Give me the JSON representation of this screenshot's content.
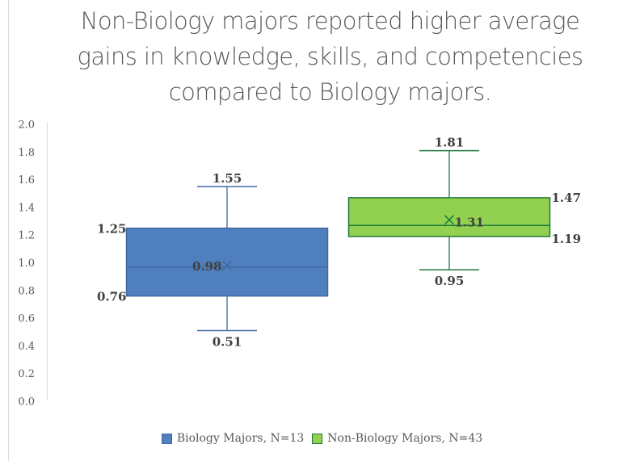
{
  "chart_data": {
    "type": "box",
    "title": "Non-Biology majors reported higher average gains in knowledge, skills, and competencies compared to Biology majors.",
    "title_lines": [
      "Non-Biology majors reported higher average",
      "gains in knowledge, skills, and competencies",
      "compared to Biology majors."
    ],
    "xlabel": "",
    "ylabel": "",
    "ylim": [
      0,
      2.0
    ],
    "yticks": [
      "0.0",
      "0.2",
      "0.4",
      "0.6",
      "0.8",
      "1.0",
      "1.2",
      "1.4",
      "1.6",
      "1.8",
      "2.0"
    ],
    "grid": false,
    "legend_position": "bottom",
    "series": [
      {
        "name": "Biology Majors, N=13",
        "color": "#4f7fbf",
        "stroke": "#41699f",
        "whisker_min": 0.51,
        "q1": 0.76,
        "median": 0.97,
        "q3": 1.25,
        "whisker_max": 1.55,
        "mean": 0.98,
        "labels": {
          "max": "1.55",
          "q3": "1.25",
          "mean": "0.98",
          "q1": "0.76",
          "min": "0.51"
        }
      },
      {
        "name": "Non-Biology Majors, N=43",
        "color": "#92d050",
        "stroke": "#1f7a3c",
        "whisker_min": 0.95,
        "q1": 1.19,
        "median": 1.27,
        "q3": 1.47,
        "whisker_max": 1.81,
        "mean": 1.31,
        "labels": {
          "max": "1.81",
          "q3": "1.47",
          "mean": "1.31",
          "q1": "1.19",
          "min": "0.95"
        }
      }
    ]
  }
}
